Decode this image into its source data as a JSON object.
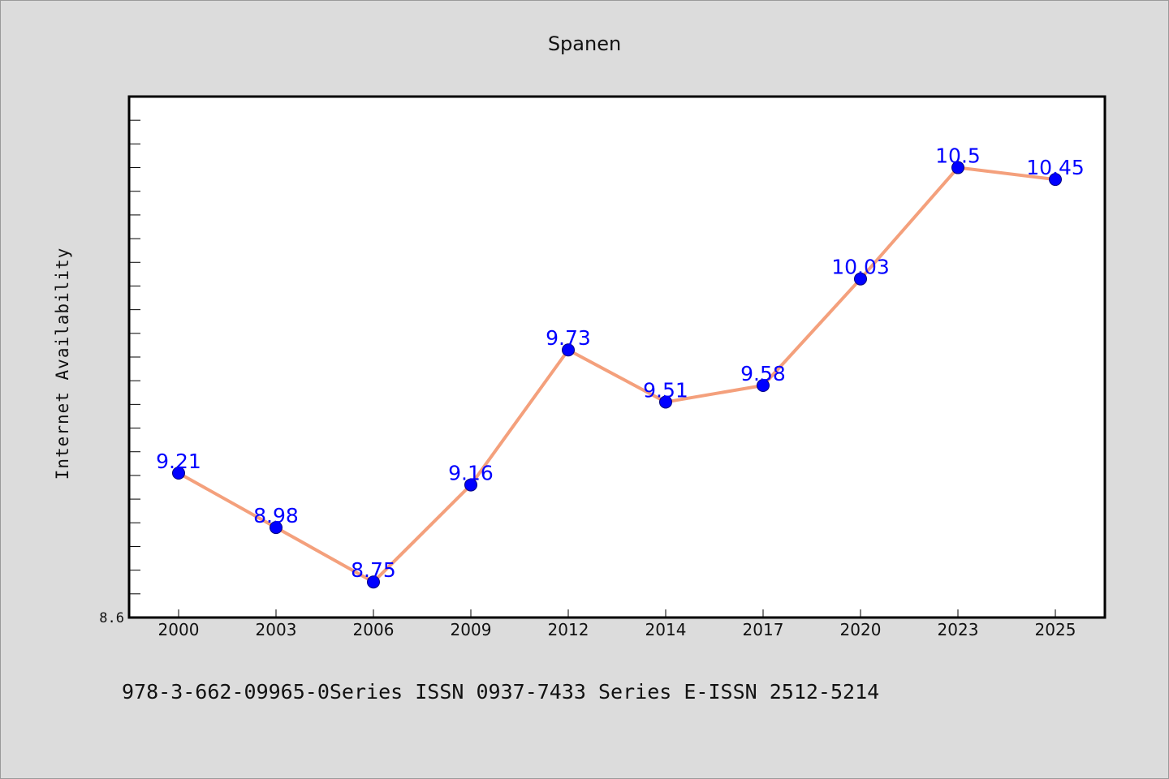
{
  "chart_data": {
    "type": "line",
    "title": "Spanen",
    "xlabel": "",
    "ylabel": "Internet Availability",
    "categories": [
      "2000",
      "2003",
      "2006",
      "2009",
      "2012",
      "2014",
      "2017",
      "2020",
      "2023",
      "2025"
    ],
    "series": [
      {
        "values": [
          9.21,
          8.98,
          8.75,
          9.16,
          9.73,
          9.51,
          9.58,
          10.03,
          10.5,
          10.45
        ],
        "labels": [
          "9.21",
          "8.98",
          "8.75",
          "9.16",
          "9.73",
          "9.51",
          "9.58",
          "10.03",
          "10.5",
          "10.45"
        ]
      }
    ],
    "ylim": [
      8.6,
      10.8
    ],
    "yticks_labeled": [
      "8.6"
    ],
    "ytick_step": 0.1,
    "grid": false,
    "legend": "none",
    "colors": {
      "line": "#f4a07c",
      "marker": "#0000ff",
      "marker_edge": "#000080",
      "data_label": "#0000ff",
      "background": "#dcdcdc",
      "plot_area": "#ffffff"
    }
  },
  "footer": {
    "text": "978-3-662-09965-0Series ISSN 0937-7433 Series E-ISSN 2512-5214"
  }
}
